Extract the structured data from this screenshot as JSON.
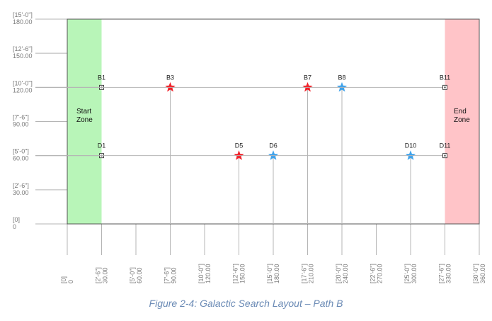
{
  "caption": "Figure 2-4: Galactic Search Layout – Path B",
  "colors": {
    "start_zone": "#b8f5b8",
    "end_zone": "#ffc4c8",
    "red_star": "#f2222a",
    "blue_star": "#3fa3ec",
    "grid_line": "#b5b5b5",
    "border": "#555555"
  },
  "zones": [
    {
      "id": "start",
      "line1": "Start",
      "line2": "Zone",
      "x_from": 0,
      "x_to": 30
    },
    {
      "id": "end",
      "line1": "End",
      "line2": "Zone",
      "x_from": 330,
      "x_to": 360
    }
  ],
  "axes": {
    "x": {
      "range": [
        0,
        360
      ],
      "ticks": [
        {
          "value": 0,
          "ftin": "[0]",
          "num": "0"
        },
        {
          "value": 30,
          "ftin": "[2'-6\"]",
          "num": "30.00"
        },
        {
          "value": 60,
          "ftin": "[5'-0\"]",
          "num": "60.00"
        },
        {
          "value": 90,
          "ftin": "[7'-6\"]",
          "num": "90.00"
        },
        {
          "value": 120,
          "ftin": "[10'-0\"]",
          "num": "120.00"
        },
        {
          "value": 150,
          "ftin": "[12'-6\"]",
          "num": "150.00"
        },
        {
          "value": 180,
          "ftin": "[15'-0\"]",
          "num": "180.00"
        },
        {
          "value": 210,
          "ftin": "[17'-6\"]",
          "num": "210.00"
        },
        {
          "value": 240,
          "ftin": "[20'-0\"]",
          "num": "240.00"
        },
        {
          "value": 270,
          "ftin": "[22'-6\"]",
          "num": "270.00"
        },
        {
          "value": 300,
          "ftin": "[25'-0\"]",
          "num": "300.00"
        },
        {
          "value": 330,
          "ftin": "[27'-6\"]",
          "num": "330.00"
        },
        {
          "value": 360,
          "ftin": "[30'-0\"]",
          "num": "360.00"
        }
      ]
    },
    "y": {
      "range": [
        0,
        180
      ],
      "ticks": [
        {
          "value": 180,
          "ftin": "[15'-0\"]",
          "num": "180.00"
        },
        {
          "value": 150,
          "ftin": "[12'-6\"]",
          "num": "150.00"
        },
        {
          "value": 120,
          "ftin": "[10'-0\"]",
          "num": "120.00"
        },
        {
          "value": 90,
          "ftin": "[7'-6\"]",
          "num": "90.00"
        },
        {
          "value": 60,
          "ftin": "[5'-0\"]",
          "num": "60.00"
        },
        {
          "value": 30,
          "ftin": "[2'-6\"]",
          "num": "30.00"
        },
        {
          "value": 0,
          "ftin": "[0]",
          "num": "0"
        }
      ]
    }
  },
  "markers": [
    {
      "label": "B1",
      "x": 30,
      "y": 120,
      "type": "square"
    },
    {
      "label": "B3",
      "x": 90,
      "y": 120,
      "type": "star",
      "color": "red"
    },
    {
      "label": "B7",
      "x": 210,
      "y": 120,
      "type": "star",
      "color": "red"
    },
    {
      "label": "B8",
      "x": 240,
      "y": 120,
      "type": "star",
      "color": "blue"
    },
    {
      "label": "B11",
      "x": 330,
      "y": 120,
      "type": "square"
    },
    {
      "label": "D1",
      "x": 30,
      "y": 60,
      "type": "square"
    },
    {
      "label": "D5",
      "x": 150,
      "y": 60,
      "type": "star",
      "color": "red"
    },
    {
      "label": "D6",
      "x": 180,
      "y": 60,
      "type": "star",
      "color": "blue"
    },
    {
      "label": "D10",
      "x": 300,
      "y": 60,
      "type": "star",
      "color": "blue"
    },
    {
      "label": "D11",
      "x": 330,
      "y": 60,
      "type": "square"
    }
  ]
}
